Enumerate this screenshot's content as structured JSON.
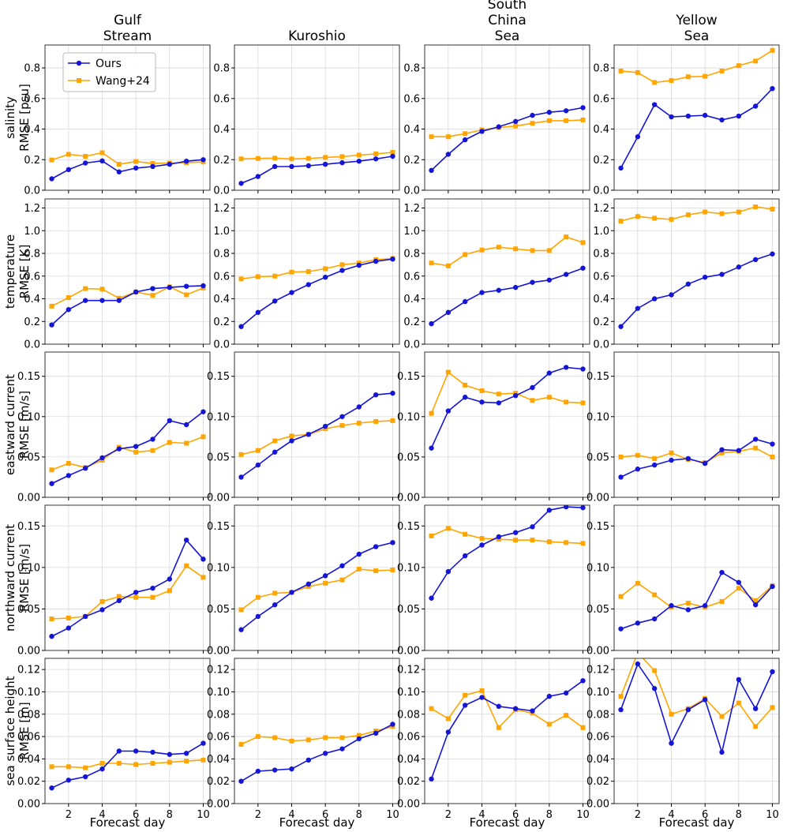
{
  "chart_data": {
    "type": "line",
    "x": [
      1,
      2,
      3,
      4,
      5,
      6,
      7,
      8,
      9,
      10
    ],
    "xticks": [
      2,
      4,
      6,
      8,
      10
    ],
    "xlim": [
      0.6,
      10.4
    ],
    "xlabel": "Forecast day",
    "grid": true,
    "legend": {
      "placement": "top-left",
      "entries": [
        {
          "name": "Ours",
          "color": "#1515d6",
          "marker": "circle"
        },
        {
          "name": "Wang+24",
          "color": "#ffa500",
          "marker": "square"
        }
      ]
    },
    "columns": [
      {
        "title": [
          "Gulf",
          "Stream"
        ]
      },
      {
        "title": [
          "Kuroshio"
        ]
      },
      {
        "title": [
          "South",
          "China",
          "Sea"
        ]
      },
      {
        "title": [
          "Yellow",
          "Sea"
        ]
      }
    ],
    "rows": [
      {
        "ylabel": [
          "salinity",
          "RMSE [psu]"
        ],
        "ylim": [
          0,
          0.95
        ],
        "yticks": [
          "0.0",
          "0.2",
          "0.4",
          "0.6",
          "0.8"
        ],
        "panels": [
          {
            "ours": [
              0.075,
              0.135,
              0.178,
              0.192,
              0.12,
              0.145,
              0.155,
              0.17,
              0.19,
              0.2
            ],
            "wang": [
              0.198,
              0.235,
              0.222,
              0.245,
              0.17,
              0.188,
              0.175,
              0.178,
              0.18,
              0.185
            ]
          },
          {
            "ours": [
              0.045,
              0.09,
              0.155,
              0.155,
              0.16,
              0.17,
              0.18,
              0.19,
              0.205,
              0.222
            ],
            "wang": [
              0.205,
              0.208,
              0.21,
              0.205,
              0.208,
              0.215,
              0.22,
              0.23,
              0.238,
              0.248
            ]
          },
          {
            "ours": [
              0.13,
              0.235,
              0.33,
              0.385,
              0.415,
              0.45,
              0.49,
              0.51,
              0.52,
              0.54
            ],
            "wang": [
              0.35,
              0.35,
              0.37,
              0.395,
              0.41,
              0.42,
              0.438,
              0.455,
              0.455,
              0.46
            ]
          },
          {
            "ours": [
              0.145,
              0.35,
              0.56,
              0.48,
              0.485,
              0.49,
              0.46,
              0.485,
              0.55,
              0.665
            ],
            "wang": [
              0.78,
              0.77,
              0.705,
              0.718,
              0.742,
              0.745,
              0.78,
              0.815,
              0.845,
              0.915
            ]
          }
        ]
      },
      {
        "ylabel": [
          "temperature",
          "RMSE [K]"
        ],
        "ylim": [
          0,
          1.28
        ],
        "yticks": [
          "0.0",
          "0.2",
          "0.4",
          "0.6",
          "0.8",
          "1.0",
          "1.2"
        ],
        "panels": [
          {
            "ours": [
              0.17,
              0.305,
              0.385,
              0.385,
              0.385,
              0.46,
              0.49,
              0.5,
              0.51,
              0.515
            ],
            "wang": [
              0.335,
              0.41,
              0.49,
              0.485,
              0.405,
              0.46,
              0.43,
              0.505,
              0.435,
              0.495
            ]
          },
          {
            "ours": [
              0.155,
              0.28,
              0.38,
              0.455,
              0.525,
              0.59,
              0.65,
              0.695,
              0.73,
              0.75
            ],
            "wang": [
              0.575,
              0.595,
              0.6,
              0.635,
              0.64,
              0.665,
              0.7,
              0.715,
              0.745,
              0.755
            ]
          },
          {
            "ours": [
              0.18,
              0.28,
              0.375,
              0.455,
              0.475,
              0.5,
              0.545,
              0.565,
              0.615,
              0.67
            ],
            "wang": [
              0.715,
              0.69,
              0.79,
              0.83,
              0.855,
              0.84,
              0.825,
              0.825,
              0.945,
              0.895
            ]
          },
          {
            "ours": [
              0.155,
              0.315,
              0.4,
              0.435,
              0.53,
              0.59,
              0.615,
              0.68,
              0.745,
              0.795
            ],
            "wang": [
              1.085,
              1.125,
              1.11,
              1.1,
              1.14,
              1.165,
              1.15,
              1.165,
              1.21,
              1.19
            ]
          }
        ]
      },
      {
        "ylabel": [
          "eastward current",
          "RMSE [m/s]"
        ],
        "ylim": [
          0,
          0.18
        ],
        "yticks": [
          "0.00",
          "0.05",
          "0.10",
          "0.15"
        ],
        "panels": [
          {
            "ours": [
              0.017,
              0.027,
              0.036,
              0.049,
              0.06,
              0.063,
              0.072,
              0.095,
              0.09,
              0.106
            ],
            "wang": [
              0.034,
              0.042,
              0.037,
              0.046,
              0.062,
              0.056,
              0.058,
              0.068,
              0.067,
              0.075
            ]
          },
          {
            "ours": [
              0.025,
              0.04,
              0.056,
              0.07,
              0.078,
              0.088,
              0.1,
              0.112,
              0.127,
              0.129
            ],
            "wang": [
              0.053,
              0.058,
              0.07,
              0.076,
              0.078,
              0.085,
              0.089,
              0.092,
              0.094,
              0.095
            ]
          },
          {
            "ours": [
              0.061,
              0.107,
              0.124,
              0.118,
              0.117,
              0.126,
              0.136,
              0.154,
              0.161,
              0.159
            ],
            "wang": [
              0.104,
              0.155,
              0.139,
              0.132,
              0.128,
              0.129,
              0.12,
              0.124,
              0.118,
              0.117
            ]
          },
          {
            "ours": [
              0.025,
              0.035,
              0.04,
              0.046,
              0.048,
              0.042,
              0.059,
              0.058,
              0.072,
              0.066
            ],
            "wang": [
              0.05,
              0.052,
              0.048,
              0.055,
              0.047,
              0.043,
              0.055,
              0.057,
              0.061,
              0.05
            ]
          }
        ]
      },
      {
        "ylabel": [
          "northward current",
          "RMSE [m/s]"
        ],
        "ylim": [
          0,
          0.175
        ],
        "yticks": [
          "0.00",
          "0.05",
          "0.10",
          "0.15"
        ],
        "panels": [
          {
            "ours": [
              0.017,
              0.027,
              0.041,
              0.049,
              0.06,
              0.07,
              0.075,
              0.086,
              0.133,
              0.11
            ],
            "wang": [
              0.038,
              0.039,
              0.041,
              0.059,
              0.065,
              0.064,
              0.064,
              0.072,
              0.102,
              0.088
            ]
          },
          {
            "ours": [
              0.025,
              0.041,
              0.055,
              0.07,
              0.08,
              0.09,
              0.102,
              0.116,
              0.125,
              0.13
            ],
            "wang": [
              0.049,
              0.064,
              0.069,
              0.07,
              0.077,
              0.081,
              0.085,
              0.098,
              0.096,
              0.097
            ]
          },
          {
            "ours": [
              0.063,
              0.095,
              0.114,
              0.127,
              0.137,
              0.142,
              0.149,
              0.169,
              0.173,
              0.172
            ],
            "wang": [
              0.138,
              0.147,
              0.14,
              0.135,
              0.134,
              0.133,
              0.133,
              0.131,
              0.13,
              0.129
            ]
          },
          {
            "ours": [
              0.026,
              0.033,
              0.038,
              0.054,
              0.049,
              0.054,
              0.094,
              0.082,
              0.055,
              0.077
            ],
            "wang": [
              0.065,
              0.081,
              0.067,
              0.052,
              0.057,
              0.052,
              0.059,
              0.075,
              0.06,
              0.078
            ]
          }
        ]
      },
      {
        "ylabel": [
          "sea surface height",
          "RMSE [m]"
        ],
        "ylim": [
          0,
          0.13
        ],
        "yticks": [
          "0.00",
          "0.02",
          "0.04",
          "0.06",
          "0.08",
          "0.10",
          "0.12"
        ],
        "panels": [
          {
            "ours": [
              0.014,
              0.021,
              0.024,
              0.031,
              0.047,
              0.047,
              0.046,
              0.044,
              0.045,
              0.054
            ],
            "wang": [
              0.033,
              0.033,
              0.032,
              0.036,
              0.036,
              0.035,
              0.036,
              0.037,
              0.038,
              0.039
            ]
          },
          {
            "ours": [
              0.02,
              0.029,
              0.03,
              0.031,
              0.039,
              0.045,
              0.049,
              0.058,
              0.063,
              0.071
            ],
            "wang": [
              0.053,
              0.06,
              0.059,
              0.056,
              0.057,
              0.059,
              0.059,
              0.061,
              0.065,
              0.069
            ]
          },
          {
            "ours": [
              0.022,
              0.064,
              0.088,
              0.095,
              0.087,
              0.085,
              0.083,
              0.096,
              0.099,
              0.11
            ],
            "wang": [
              0.085,
              0.076,
              0.097,
              0.101,
              0.068,
              0.084,
              0.081,
              0.071,
              0.079,
              0.068
            ]
          },
          {
            "ours": [
              0.084,
              0.125,
              0.103,
              0.054,
              0.084,
              0.093,
              0.046,
              0.111,
              0.085,
              0.118
            ],
            "wang": [
              0.096,
              0.135,
              0.119,
              0.08,
              0.085,
              0.094,
              0.078,
              0.09,
              0.069,
              0.086
            ]
          }
        ]
      }
    ]
  }
}
